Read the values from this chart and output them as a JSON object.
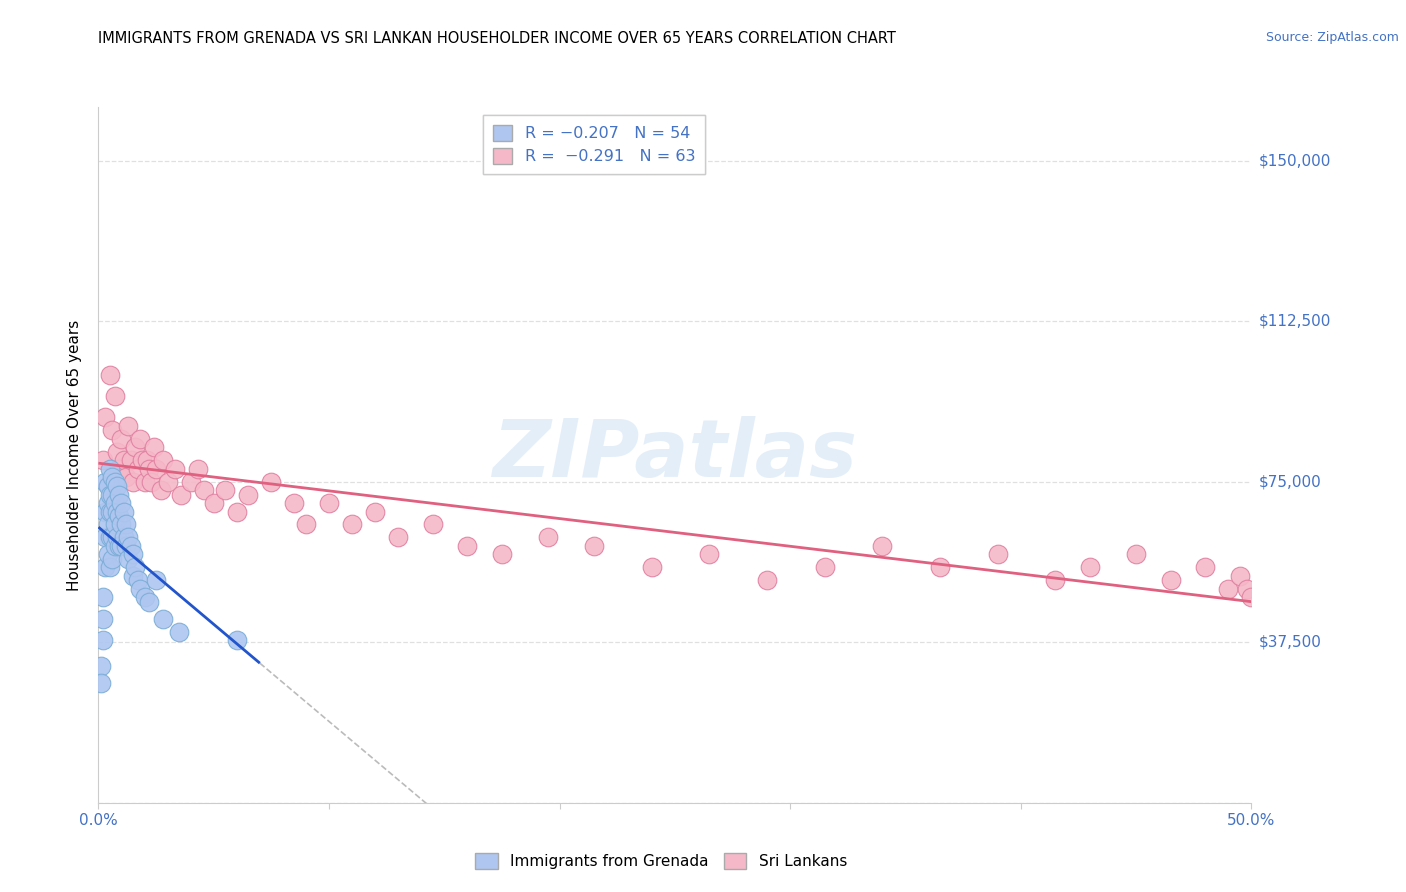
{
  "title": "IMMIGRANTS FROM GRENADA VS SRI LANKAN HOUSEHOLDER INCOME OVER 65 YEARS CORRELATION CHART",
  "source": "Source: ZipAtlas.com",
  "ylabel": "Householder Income Over 65 years",
  "xlim": [
    0.0,
    0.5
  ],
  "ylim": [
    0,
    162500
  ],
  "yticks": [
    0,
    37500,
    75000,
    112500,
    150000
  ],
  "ytick_labels": [
    "",
    "$37,500",
    "$75,000",
    "$112,500",
    "$150,000"
  ],
  "xtick_labels": [
    "0.0%",
    "",
    "",
    "",
    "",
    "50.0%"
  ],
  "xticks": [
    0.0,
    0.1,
    0.2,
    0.3,
    0.4,
    0.5
  ],
  "background_color": "#ffffff",
  "grid_color": "#e0e0e0",
  "axis_color": "#4472c4",
  "grenada_color": "#aec6f0",
  "grenada_edge_color": "#7badd6",
  "srilanka_color": "#f5b8c8",
  "srilanka_edge_color": "#e080a0",
  "blue_line_color": "#2255cc",
  "pink_line_color": "#e06080",
  "dashed_line_color": "#bbbbbb",
  "watermark_color": "#c8dff5",
  "grenada_scatter_x": [
    0.001,
    0.001,
    0.002,
    0.002,
    0.002,
    0.003,
    0.003,
    0.003,
    0.003,
    0.004,
    0.004,
    0.004,
    0.004,
    0.005,
    0.005,
    0.005,
    0.005,
    0.005,
    0.006,
    0.006,
    0.006,
    0.006,
    0.006,
    0.007,
    0.007,
    0.007,
    0.007,
    0.008,
    0.008,
    0.008,
    0.009,
    0.009,
    0.009,
    0.01,
    0.01,
    0.01,
    0.011,
    0.011,
    0.012,
    0.012,
    0.013,
    0.013,
    0.014,
    0.015,
    0.015,
    0.016,
    0.017,
    0.018,
    0.02,
    0.022,
    0.025,
    0.028,
    0.035,
    0.06
  ],
  "grenada_scatter_y": [
    32000,
    28000,
    48000,
    43000,
    38000,
    75000,
    68000,
    62000,
    55000,
    74000,
    70000,
    65000,
    58000,
    78000,
    72000,
    68000,
    62000,
    55000,
    76000,
    72000,
    68000,
    62000,
    57000,
    75000,
    70000,
    65000,
    60000,
    74000,
    68000,
    62000,
    72000,
    67000,
    60000,
    70000,
    65000,
    60000,
    68000,
    62000,
    65000,
    60000,
    62000,
    57000,
    60000,
    58000,
    53000,
    55000,
    52000,
    50000,
    48000,
    47000,
    52000,
    43000,
    40000,
    38000
  ],
  "srilanka_scatter_x": [
    0.002,
    0.003,
    0.005,
    0.006,
    0.007,
    0.008,
    0.009,
    0.01,
    0.011,
    0.012,
    0.013,
    0.014,
    0.015,
    0.016,
    0.017,
    0.018,
    0.019,
    0.02,
    0.021,
    0.022,
    0.023,
    0.024,
    0.025,
    0.027,
    0.028,
    0.03,
    0.033,
    0.036,
    0.04,
    0.043,
    0.046,
    0.05,
    0.055,
    0.06,
    0.065,
    0.075,
    0.085,
    0.09,
    0.1,
    0.11,
    0.12,
    0.13,
    0.145,
    0.16,
    0.175,
    0.195,
    0.215,
    0.24,
    0.265,
    0.29,
    0.315,
    0.34,
    0.365,
    0.39,
    0.415,
    0.43,
    0.45,
    0.465,
    0.48,
    0.49,
    0.495,
    0.498,
    0.5
  ],
  "srilanka_scatter_y": [
    80000,
    90000,
    100000,
    87000,
    95000,
    82000,
    78000,
    85000,
    80000,
    76000,
    88000,
    80000,
    75000,
    83000,
    78000,
    85000,
    80000,
    75000,
    80000,
    78000,
    75000,
    83000,
    78000,
    73000,
    80000,
    75000,
    78000,
    72000,
    75000,
    78000,
    73000,
    70000,
    73000,
    68000,
    72000,
    75000,
    70000,
    65000,
    70000,
    65000,
    68000,
    62000,
    65000,
    60000,
    58000,
    62000,
    60000,
    55000,
    58000,
    52000,
    55000,
    60000,
    55000,
    58000,
    52000,
    55000,
    58000,
    52000,
    55000,
    50000,
    53000,
    50000,
    48000
  ]
}
